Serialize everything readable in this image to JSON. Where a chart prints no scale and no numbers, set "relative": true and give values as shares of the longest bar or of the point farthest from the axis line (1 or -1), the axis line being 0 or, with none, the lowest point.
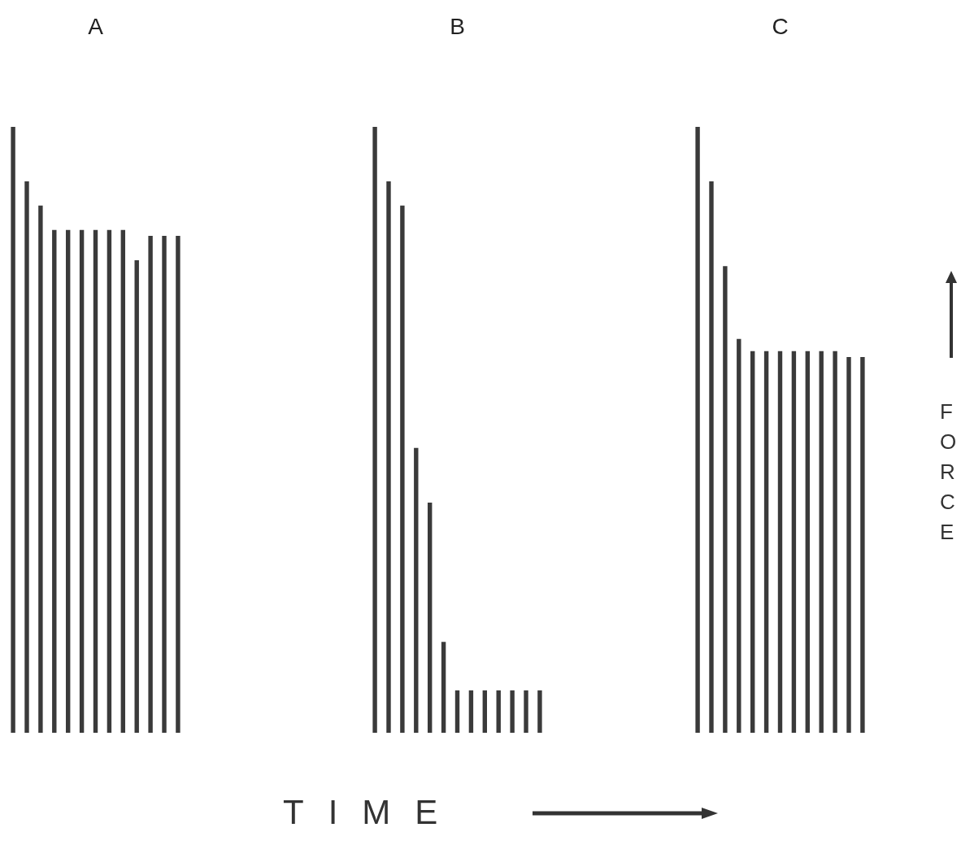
{
  "chart_data": [
    {
      "type": "bar",
      "title": "A",
      "relative": true,
      "color": "#3a3a3a",
      "categories": [
        null,
        null,
        null,
        null,
        null,
        null,
        null,
        null,
        null,
        null,
        null,
        null,
        null
      ],
      "values": [
        1,
        0.91,
        0.87,
        0.83,
        0.83,
        0.83,
        0.83,
        0.83,
        0.83,
        0.78,
        0.82,
        0.82,
        0.82
      ]
    },
    {
      "type": "bar",
      "title": "B",
      "xlabel": "TIME",
      "relative": true,
      "color": "#3a3a3a",
      "categories": [
        null,
        null,
        null,
        null,
        null,
        null,
        null,
        null,
        null,
        null,
        null,
        null,
        null
      ],
      "values": [
        1,
        0.91,
        0.87,
        0.47,
        0.38,
        0.15,
        0.07,
        0.07,
        0.07,
        0.07,
        0.07,
        0.07,
        0.07
      ]
    },
    {
      "type": "bar",
      "title": "C",
      "ylabel": "FORCE",
      "relative": true,
      "color": "#3a3a3a",
      "categories": [
        null,
        null,
        null,
        null,
        null,
        null,
        null,
        null,
        null,
        null,
        null,
        null,
        null
      ],
      "values": [
        1,
        0.91,
        0.77,
        0.65,
        0.63,
        0.63,
        0.63,
        0.63,
        0.63,
        0.63,
        0.63,
        0.62,
        0.62
      ]
    }
  ]
}
